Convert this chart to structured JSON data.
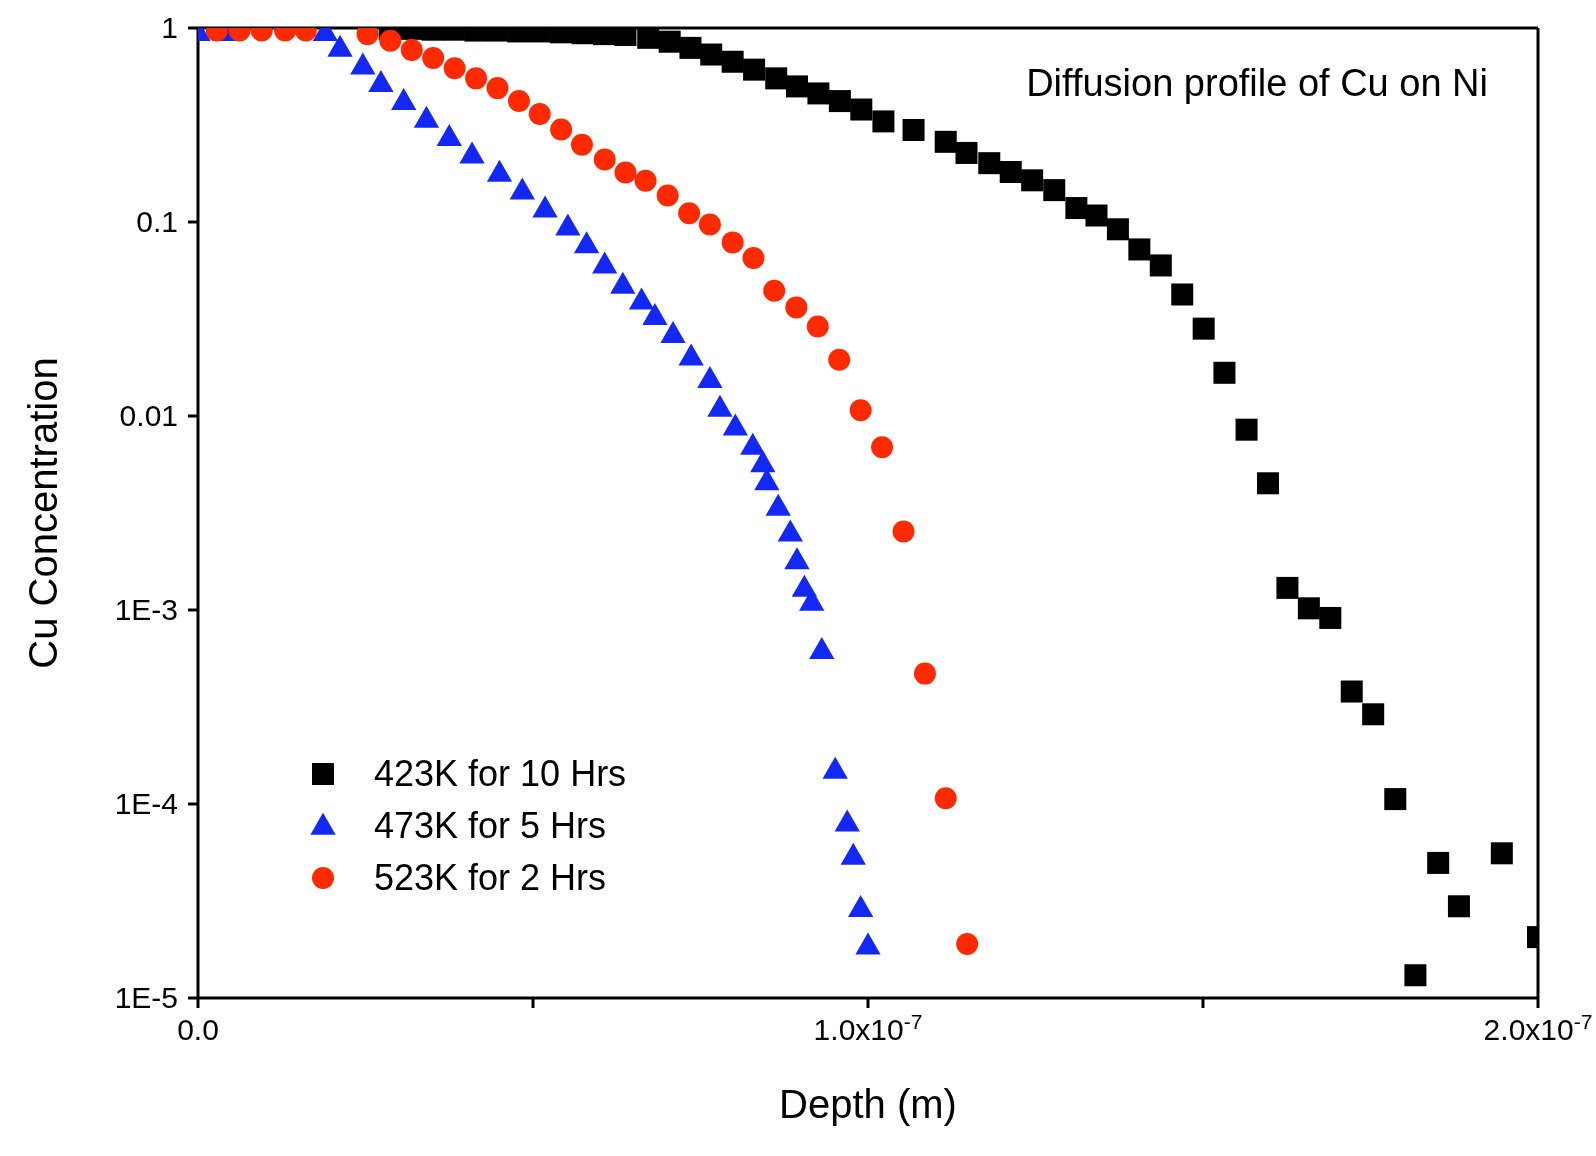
{
  "chart_data": {
    "type": "scatter",
    "title": "Diffusion profile of Cu on Ni",
    "xlabel": "Depth (m)",
    "ylabel": "Cu Concentration",
    "log": "y",
    "legend": "bottom left",
    "xlim": [
      0,
      2e-07
    ],
    "xticks": [
      {
        "value": 0,
        "label": "0.0"
      },
      {
        "value": 5e-08,
        "label": null
      },
      {
        "value": 1e-07,
        "label": "1.0x10$^{-7}$"
      },
      {
        "value": 1.5e-07,
        "label": null
      },
      {
        "value": 2e-07,
        "label": "2.0x10$^{-7}$"
      }
    ],
    "ylim": [
      1e-05,
      1
    ],
    "yticks": [
      {
        "value": 1e-05,
        "label": "1E-5"
      },
      {
        "value": 0.0001,
        "label": "1E-4"
      },
      {
        "value": 0.001,
        "label": "1E-3"
      },
      0.01,
      0.1,
      1
    ],
    "series": [
      {
        "name": "423K for 10 Hrs",
        "color": "#000000",
        "marker": "square",
        "x": [
          2.86e-08,
          3.18e-08,
          3.5e-08,
          3.82e-08,
          4.14e-08,
          4.46e-08,
          4.78e-08,
          5.1e-08,
          5.42e-08,
          5.74e-08,
          6.06e-08,
          6.38e-08,
          6.72e-08,
          7.04e-08,
          7.35e-08,
          7.66e-08,
          7.98e-08,
          8.3e-08,
          8.63e-08,
          8.94e-08,
          9.26e-08,
          9.58e-08,
          9.9e-08,
          1.023e-07,
          1.068e-07,
          1.116e-07,
          1.147e-07,
          1.181e-07,
          1.213e-07,
          1.245e-07,
          1.278e-07,
          1.311e-07,
          1.341e-07,
          1.373e-07,
          1.405e-07,
          1.437e-07,
          1.469e-07,
          1.501e-07,
          1.532e-07,
          1.565e-07,
          1.597e-07,
          1.626e-07,
          1.658e-07,
          1.69e-07,
          1.722e-07,
          1.754e-07,
          1.787e-07,
          1.817e-07,
          1.851e-07,
          1.882e-07,
          1.946e-07,
          2e-07
        ],
        "values": [
          0.99,
          0.99,
          0.98,
          0.98,
          0.97,
          0.97,
          0.96,
          0.96,
          0.95,
          0.94,
          0.93,
          0.92,
          0.89,
          0.85,
          0.79,
          0.73,
          0.67,
          0.61,
          0.55,
          0.5,
          0.46,
          0.42,
          0.38,
          0.33,
          0.298,
          0.259,
          0.227,
          0.201,
          0.181,
          0.164,
          0.146,
          0.118,
          0.108,
          0.0917,
          0.0722,
          0.0597,
          0.0423,
          0.0282,
          0.0167,
          0.0085,
          0.0045,
          0.0013,
          0.00102,
          0.00091,
          0.00038,
          0.00029,
          0.000106,
          1.31e-05,
          4.97e-05,
          2.97e-05,
          5.57e-05,
          2.06e-05
        ]
      },
      {
        "name": "473K for 5 Hrs",
        "color": "#1428f5",
        "marker": "triangle",
        "x": [
          0,
          4e-09,
          8e-09,
          1.2e-08,
          1.6e-08,
          1.9e-08,
          2.12e-08,
          2.46e-08,
          2.73e-08,
          3.07e-08,
          3.41e-08,
          3.75e-08,
          4.09e-08,
          4.5e-08,
          4.84e-08,
          5.18e-08,
          5.52e-08,
          5.8e-08,
          6.07e-08,
          6.34e-08,
          6.62e-08,
          6.82e-08,
          7.09e-08,
          7.36e-08,
          7.64e-08,
          7.79e-08,
          8.02e-08,
          8.28e-08,
          8.43e-08,
          8.49e-08,
          8.66e-08,
          8.84e-08,
          8.94e-08,
          9.05e-08,
          9.16e-08,
          9.31e-08,
          9.51e-08,
          9.69e-08,
          9.78e-08,
          9.89e-08,
          1e-07
        ],
        "values": [
          0.95,
          0.95,
          null,
          null,
          null,
          0.95,
          0.79,
          0.64,
          0.52,
          0.42,
          0.34,
          0.274,
          0.222,
          0.179,
          0.145,
          0.117,
          0.0946,
          0.0765,
          0.0602,
          0.0474,
          0.0393,
          0.0327,
          0.0264,
          0.0202,
          0.0155,
          0.011,
          0.0088,
          0.007,
          0.0057,
          0.0046,
          0.0034,
          0.0025,
          0.0018,
          0.0013,
          0.0011,
          0.00062,
          0.00015,
          8e-05,
          5.4e-05,
          2.9e-05,
          1.86e-05
        ]
      },
      {
        "name": "523K for 2 Hrs",
        "color": "#ff2a00",
        "marker": "circle",
        "x": [
          2.8e-09,
          6.2e-09,
          9.5e-09,
          1.3e-08,
          1.61e-08,
          2.53e-08,
          2.87e-08,
          3.19e-08,
          3.51e-08,
          3.83e-08,
          4.15e-08,
          4.47e-08,
          4.79e-08,
          5.1e-08,
          5.42e-08,
          5.73e-08,
          6.07e-08,
          6.38e-08,
          6.68e-08,
          7.01e-08,
          7.33e-08,
          7.64e-08,
          7.98e-08,
          8.29e-08,
          8.6e-08,
          8.93e-08,
          9.25e-08,
          9.57e-08,
          9.89e-08,
          1.021e-07,
          1.053e-07,
          1.085e-07,
          1.116e-07,
          1.148e-07
        ],
        "values": [
          0.97,
          0.97,
          0.97,
          0.97,
          0.97,
          0.93,
          0.86,
          0.77,
          0.7,
          0.62,
          0.55,
          0.49,
          0.42,
          0.36,
          0.3,
          0.25,
          0.21,
          0.18,
          0.163,
          0.137,
          0.111,
          0.097,
          0.0785,
          0.0652,
          0.0442,
          0.0363,
          0.0289,
          0.0195,
          0.0107,
          0.0069,
          0.00254,
          0.00047,
          0.000107,
          1.9e-05
        ]
      }
    ]
  }
}
